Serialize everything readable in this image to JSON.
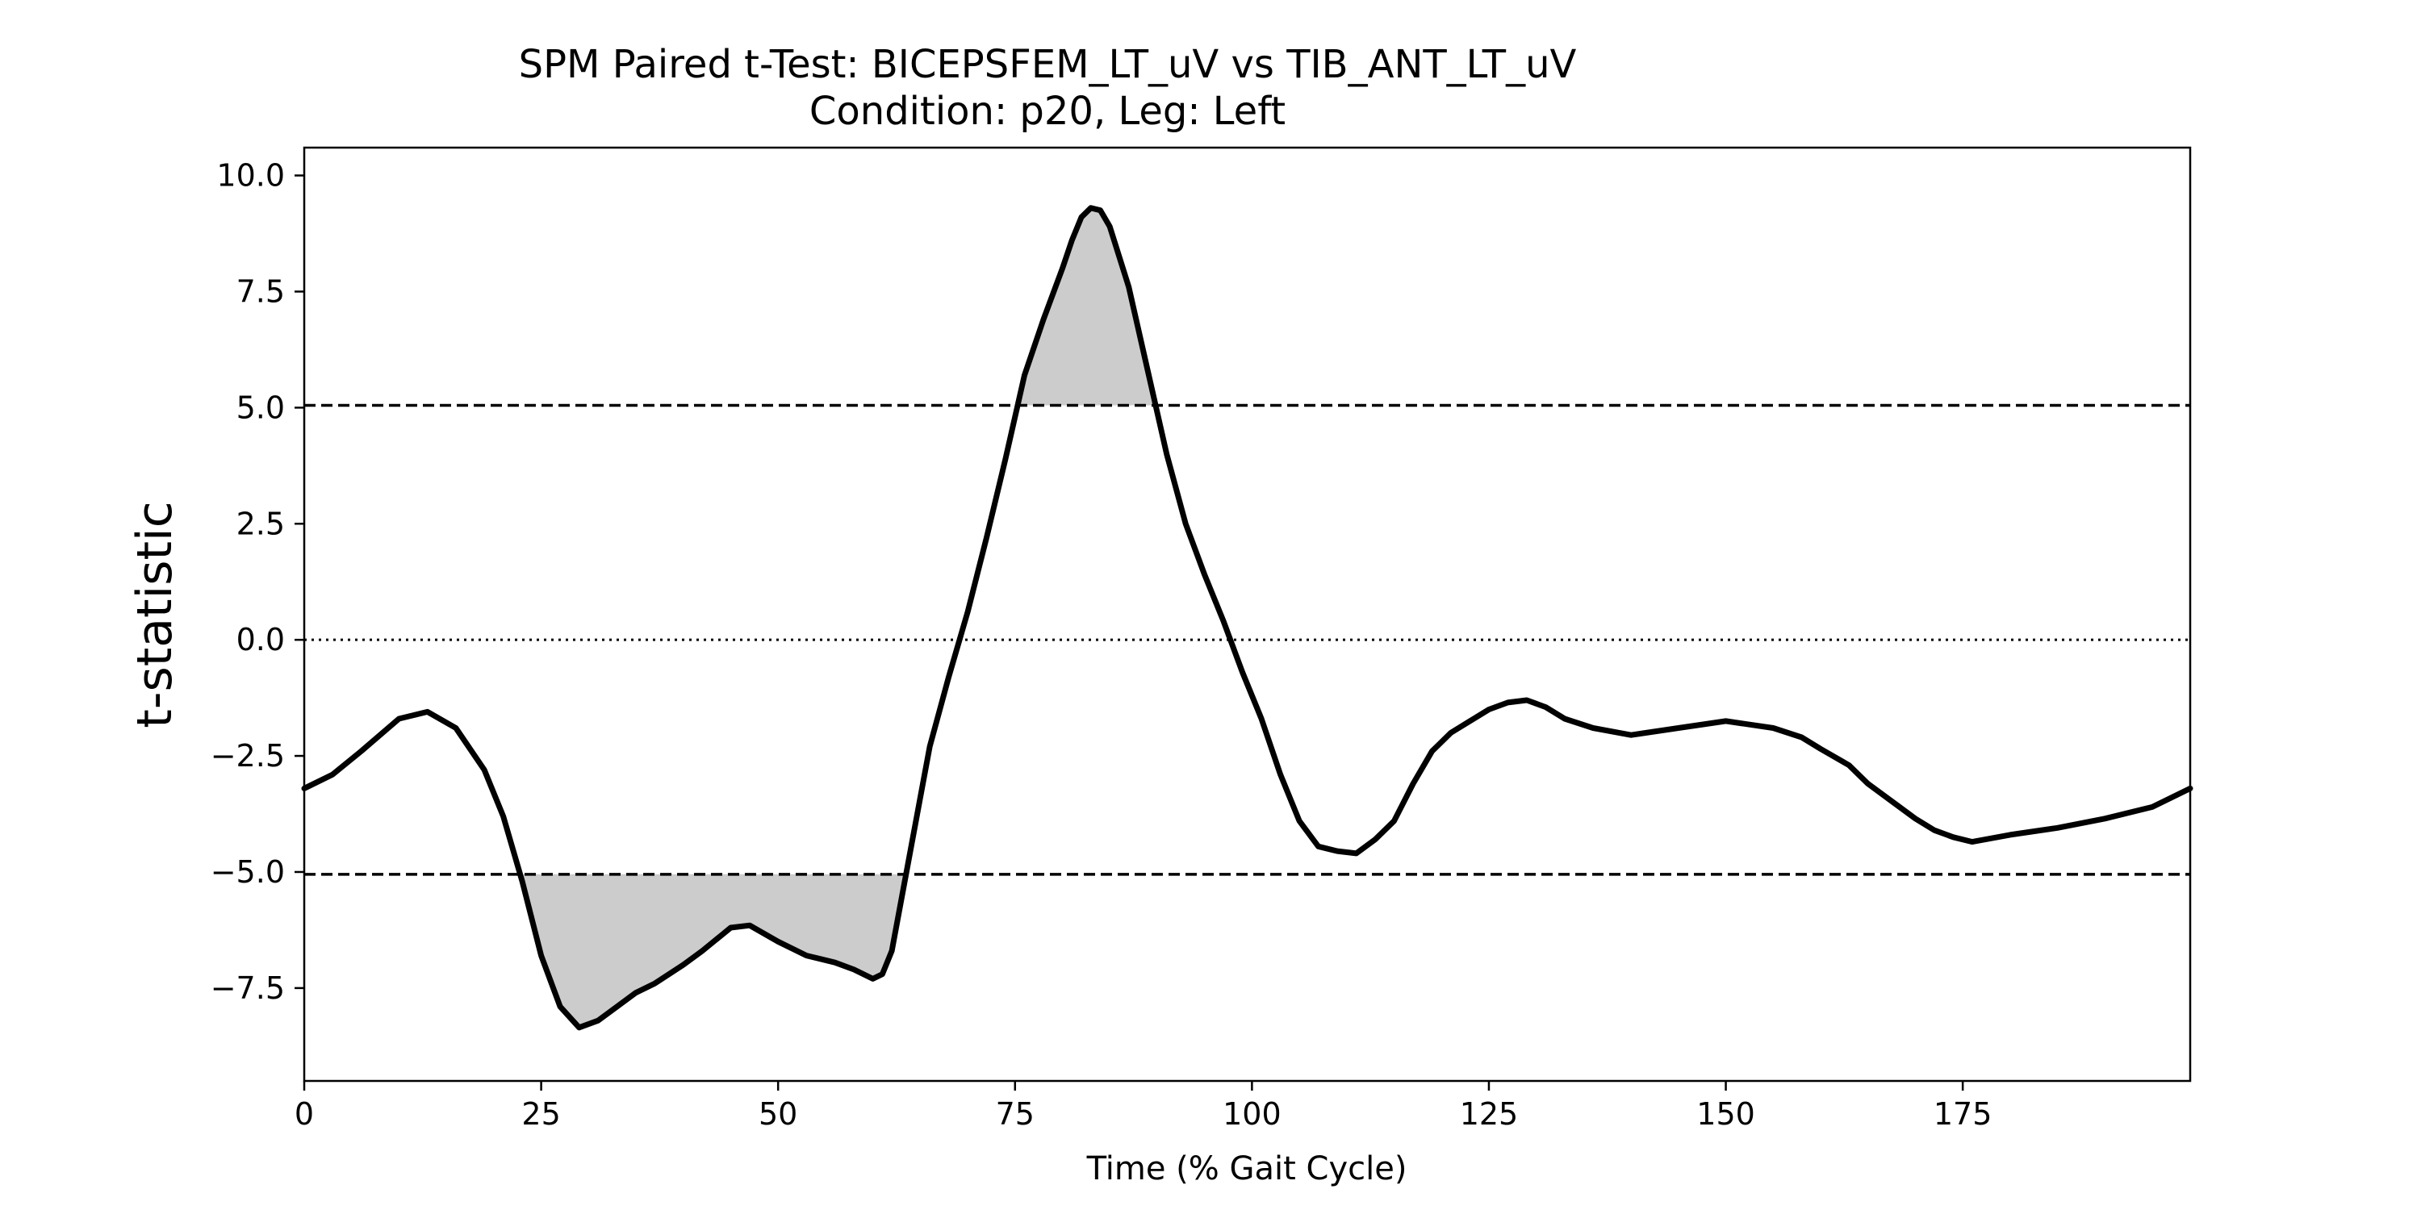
{
  "chart_data": {
    "type": "line",
    "title": "SPM Paired t-Test: BICEPSFEM_LT_uV vs TIB_ANT_LT_uV",
    "subtitle": "Condition: p20, Leg: Left",
    "xlabel": "Time (% Gait Cycle)",
    "ylabel": "t-statistic",
    "xlim": [
      0,
      199
    ],
    "ylim": [
      -9.5,
      10.6
    ],
    "xticks": [
      0,
      25,
      50,
      75,
      100,
      125,
      150,
      175
    ],
    "xtick_labels": [
      "0",
      "25",
      "50",
      "75",
      "100",
      "125",
      "150",
      "175"
    ],
    "yticks": [
      10.0,
      7.5,
      5.0,
      2.5,
      0.0,
      -2.5,
      -5.0,
      -7.5
    ],
    "ytick_labels": [
      "10.0",
      "7.5",
      "5.0",
      "2.5",
      "0.0",
      "−2.5",
      "−5.0",
      "−7.5"
    ],
    "threshold": 5.05,
    "reference_line": 0.0,
    "grid": false,
    "colors": {
      "line": "#000000",
      "fill": "#cccccc",
      "threshold": "#000000"
    },
    "series": [
      {
        "x": [
          0,
          3,
          6,
          10,
          13,
          16,
          19,
          21,
          23,
          25,
          27,
          29,
          31,
          33,
          35,
          37,
          40,
          42,
          45,
          47,
          50,
          53,
          56,
          58,
          60,
          61,
          62,
          64,
          66,
          68,
          70,
          72,
          74,
          76,
          78,
          80,
          81,
          82,
          83,
          84,
          85,
          87,
          89,
          91,
          93,
          95,
          97,
          99,
          101,
          103,
          105,
          107,
          109,
          111,
          113,
          115,
          117,
          119,
          121,
          123,
          125,
          127,
          129,
          131,
          133,
          136,
          140,
          145,
          150,
          155,
          158,
          160,
          163,
          165,
          168,
          170,
          172,
          174,
          176,
          180,
          185,
          190,
          195,
          199
        ],
        "y": [
          -3.2,
          -2.9,
          -2.4,
          -1.7,
          -1.55,
          -1.9,
          -2.8,
          -3.8,
          -5.2,
          -6.8,
          -7.9,
          -8.35,
          -8.2,
          -7.9,
          -7.6,
          -7.4,
          -7.0,
          -6.7,
          -6.2,
          -6.15,
          -6.5,
          -6.8,
          -6.95,
          -7.1,
          -7.3,
          -7.2,
          -6.7,
          -4.5,
          -2.3,
          -0.8,
          0.6,
          2.2,
          3.9,
          5.7,
          6.9,
          8.0,
          8.6,
          9.1,
          9.3,
          9.25,
          8.9,
          7.6,
          5.8,
          4.0,
          2.5,
          1.4,
          0.4,
          -0.7,
          -1.7,
          -2.9,
          -3.9,
          -4.45,
          -4.55,
          -4.6,
          -4.3,
          -3.9,
          -3.1,
          -2.4,
          -2.0,
          -1.75,
          -1.5,
          -1.35,
          -1.3,
          -1.45,
          -1.7,
          -1.9,
          -2.05,
          -1.9,
          -1.75,
          -1.9,
          -2.1,
          -2.35,
          -2.7,
          -3.1,
          -3.55,
          -3.85,
          -4.1,
          -4.25,
          -4.35,
          -4.2,
          -4.05,
          -3.85,
          -3.6,
          -3.2
        ]
      }
    ]
  }
}
